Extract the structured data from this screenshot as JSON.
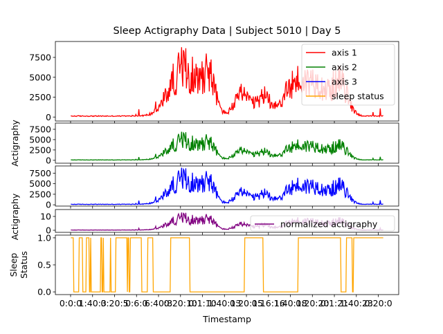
{
  "title": "Sleep Actigraphy Data | Subject 5010 | Day 5",
  "xlabel": "Timestamp",
  "x_tick_labels": [
    "0:0:0",
    "1:40:3",
    "0:20:5",
    "0:6:0",
    "6:40:8",
    "0:20:10",
    "0:1:10",
    "1:40:13",
    "0:20:15",
    "0:16:16",
    "1:40:18",
    "0:20:20",
    "0:1:21",
    "1:40:23",
    "0:20:0"
  ],
  "chart_data": [
    {
      "type": "line",
      "panel": 1,
      "ylabel": "",
      "ylim": [
        -500,
        9500
      ],
      "yticks": [
        0,
        2500,
        5000,
        7500
      ],
      "ytick_labels": [
        "0",
        "2500",
        "5000",
        "7500"
      ],
      "legend": {
        "placement": "upper-right",
        "entries": [
          "axis 1",
          "axis 2",
          "axis 3",
          "sleep status"
        ]
      },
      "series": [
        {
          "name": "axis 1",
          "color": "#ff0000",
          "profile": "activity",
          "approx_max": 8900
        }
      ]
    },
    {
      "type": "line",
      "panel": 2,
      "ylabel": "Actigraphy",
      "ylim": [
        -700,
        9000
      ],
      "yticks": [
        0,
        2500,
        5000,
        7500
      ],
      "ytick_labels": [
        "0",
        "2500",
        "5000",
        "7500"
      ],
      "series": [
        {
          "name": "axis 2",
          "color": "#008000",
          "profile": "activity",
          "approx_max": 7000
        }
      ]
    },
    {
      "type": "line",
      "panel": 3,
      "ylabel": "",
      "ylim": [
        -300,
        9200
      ],
      "yticks": [
        0,
        2500,
        5000,
        7500
      ],
      "ytick_labels": [
        "0",
        "2500",
        "5000",
        "7500"
      ],
      "series": [
        {
          "name": "axis 3",
          "color": "#0000ff",
          "profile": "activity",
          "approx_max": 8900
        }
      ]
    },
    {
      "type": "line",
      "panel": 4,
      "ylabel": "Actigraphy",
      "ylim": [
        -1.5,
        15
      ],
      "yticks": [
        0,
        10
      ],
      "ytick_labels": [
        "0",
        "10"
      ],
      "legend": {
        "placement": "lower-right",
        "entries": [
          "normalized actigraphy"
        ]
      },
      "series": [
        {
          "name": "normalized actigraphy",
          "color": "#800080",
          "profile": "activity",
          "approx_max": 13
        }
      ]
    },
    {
      "type": "line",
      "panel": 5,
      "ylabel": "Sleep Status",
      "ylabel_lines": [
        "Sleep",
        "Status"
      ],
      "ylim": [
        -0.05,
        1.05
      ],
      "yticks": [
        0.0,
        0.5,
        1.0
      ],
      "ytick_labels": [
        "0.0",
        "0.5",
        "1.0"
      ],
      "series": [
        {
          "name": "sleep status",
          "color": "#ffa500",
          "profile": "binary"
        }
      ]
    }
  ]
}
